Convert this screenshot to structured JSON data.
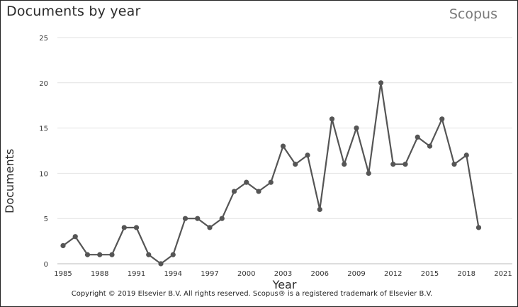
{
  "header": {
    "title": "Documents by year",
    "brand": "Scopus"
  },
  "footer": {
    "copyright": "Copyright © 2019 Elsevier B.V. All rights reserved. Scopus® is a registered trademark of Elsevier B.V."
  },
  "chart_data": {
    "type": "line",
    "title": "Documents by year",
    "xlabel": "Year",
    "ylabel": "Documents",
    "xlim": [
      1985,
      2021
    ],
    "ylim": [
      0,
      25
    ],
    "xticks": [
      1985,
      1988,
      1991,
      1994,
      1997,
      2000,
      2003,
      2006,
      2009,
      2012,
      2015,
      2018,
      2021
    ],
    "yticks": [
      0,
      5,
      10,
      15,
      20,
      25
    ],
    "grid": "horizontal",
    "legend": "none",
    "line_color": "#555555",
    "series": [
      {
        "x": [
          1985,
          1986,
          1987,
          1988,
          1989,
          1990,
          1991,
          1992,
          1993,
          1994,
          1995,
          1996,
          1997,
          1998,
          1999,
          2000,
          2001,
          2002,
          2003,
          2004,
          2005,
          2006,
          2007,
          2008,
          2009,
          2010,
          2011,
          2012,
          2013,
          2014,
          2015,
          2016,
          2017,
          2018,
          2019
        ],
        "values": [
          2,
          3,
          1,
          1,
          1,
          4,
          4,
          1,
          0,
          1,
          5,
          5,
          4,
          5,
          8,
          9,
          8,
          9,
          13,
          11,
          12,
          6,
          16,
          11,
          15,
          10,
          20,
          11,
          11,
          14,
          13,
          16,
          11,
          12,
          4
        ]
      }
    ]
  }
}
